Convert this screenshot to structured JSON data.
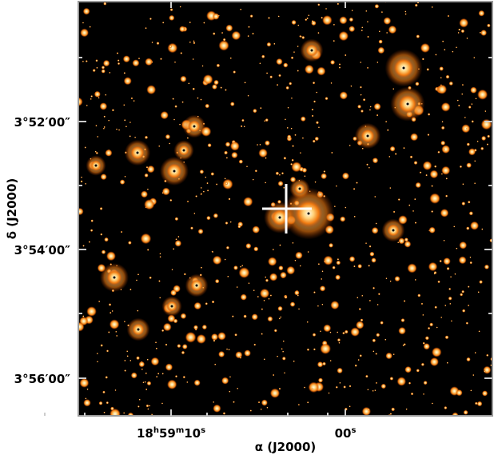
{
  "figure": {
    "x_axis_label": "α (J2000)",
    "y_axis_label": "δ (J2000)",
    "x_ticks": [
      [
        "18",
        "h",
        "59",
        "m",
        "10",
        "s"
      ],
      [
        "00",
        "s"
      ]
    ],
    "y_ticks": [
      "3°52′00″",
      "3°54′00″",
      "3°56′00″"
    ]
  }
}
